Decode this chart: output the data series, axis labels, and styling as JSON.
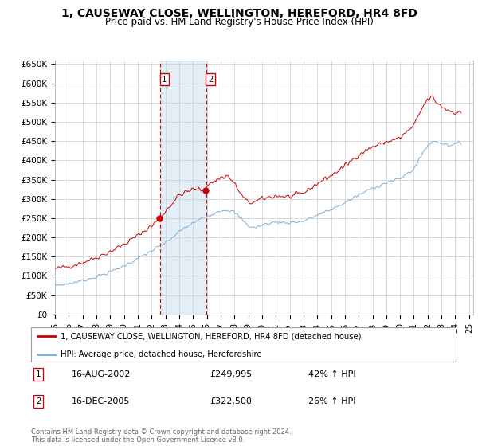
{
  "title": "1, CAUSEWAY CLOSE, WELLINGTON, HEREFORD, HR4 8FD",
  "subtitle": "Price paid vs. HM Land Registry's House Price Index (HPI)",
  "red_line_color": "#cc0000",
  "blue_line_color": "#7bafd4",
  "grid_color": "#cccccc",
  "background_color": "#ffffff",
  "sale1_x": 2002.62,
  "sale1_y": 249995,
  "sale1_label": "1",
  "sale1_date": "16-AUG-2002",
  "sale1_price": "£249,995",
  "sale1_hpi": "42% ↑ HPI",
  "sale2_x": 2005.96,
  "sale2_y": 322500,
  "sale2_label": "2",
  "sale2_date": "16-DEC-2005",
  "sale2_price": "£322,500",
  "sale2_hpi": "26% ↑ HPI",
  "legend_line1": "1, CAUSEWAY CLOSE, WELLINGTON, HEREFORD, HR4 8FD (detached house)",
  "legend_line2": "HPI: Average price, detached house, Herefordshire",
  "footnote": "Contains HM Land Registry data © Crown copyright and database right 2024.\nThis data is licensed under the Open Government Licence v3.0.",
  "ylim": [
    0,
    660000
  ],
  "yticks": [
    0,
    50000,
    100000,
    150000,
    200000,
    250000,
    300000,
    350000,
    400000,
    450000,
    500000,
    550000,
    600000,
    650000
  ],
  "ytick_labels": [
    "£0",
    "£50K",
    "£100K",
    "£150K",
    "£200K",
    "£250K",
    "£300K",
    "£350K",
    "£400K",
    "£450K",
    "£500K",
    "£550K",
    "£600K",
    "£650K"
  ],
  "xlim": [
    1995.0,
    2025.3
  ],
  "xtick_labels": [
    "95",
    "96",
    "97",
    "98",
    "99",
    "00",
    "01",
    "02",
    "03",
    "04",
    "05",
    "06",
    "07",
    "08",
    "09",
    "10",
    "11",
    "12",
    "13",
    "14",
    "15",
    "16",
    "17",
    "18",
    "19",
    "20",
    "21",
    "22",
    "23",
    "24",
    "25"
  ]
}
